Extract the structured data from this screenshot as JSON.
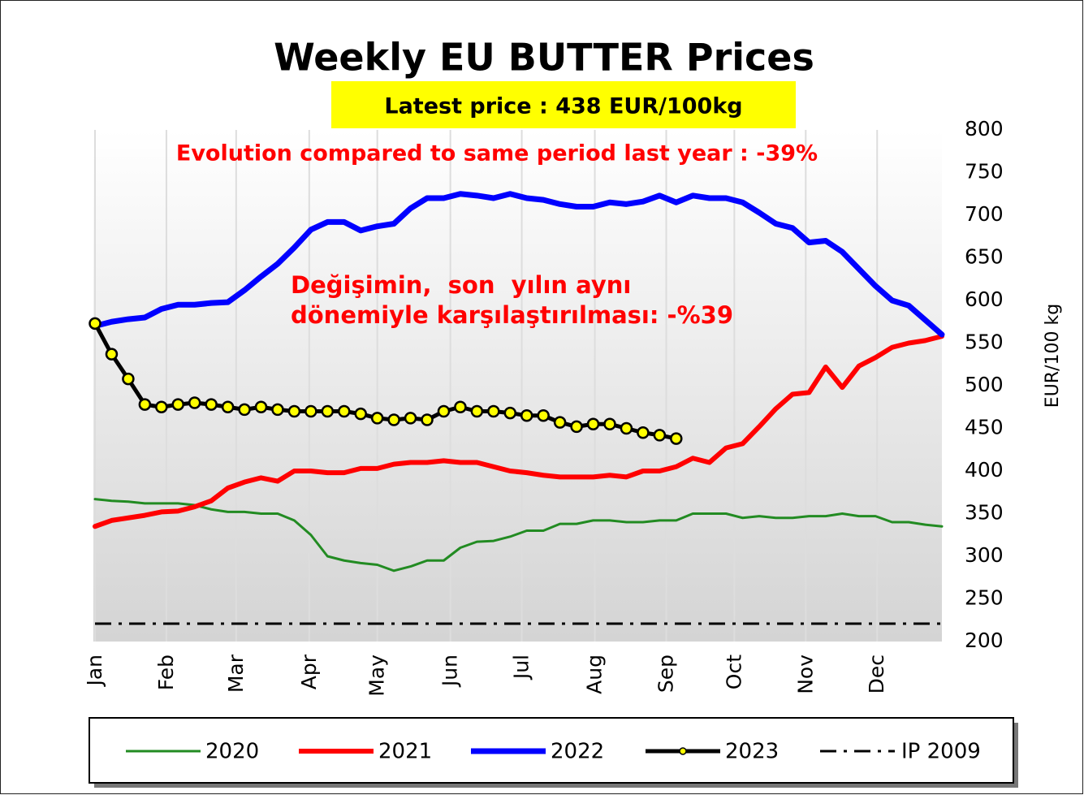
{
  "chart_data": {
    "type": "line",
    "title": "Weekly EU BUTTER Prices",
    "subtitle": "Latest price : 438 EUR/100kg",
    "annotations": [
      "Evolution compared to same period last year : -39%",
      "Değişimin,  son  yılın aynı",
      "dönemiyle karşılaştırılması: -%39"
    ],
    "y_label": "EUR/100 kg",
    "x": [
      1,
      2,
      3,
      4,
      5,
      6,
      7,
      8,
      9,
      10,
      11,
      12,
      13,
      14,
      15,
      16,
      17,
      18,
      19,
      20,
      21,
      22,
      23,
      24,
      25,
      26,
      27,
      28,
      29,
      30,
      31,
      32,
      33,
      34,
      35,
      36,
      37,
      38,
      39,
      40,
      41,
      42,
      43,
      44,
      45,
      46,
      47,
      48,
      49,
      50,
      51,
      52
    ],
    "xlim": [
      1,
      52
    ],
    "xticks": [
      {
        "value": 1,
        "label": "Jan"
      },
      {
        "value": 5.3,
        "label": "Feb"
      },
      {
        "value": 9.5,
        "label": "Mar"
      },
      {
        "value": 13.9,
        "label": "Apr"
      },
      {
        "value": 18,
        "label": "May"
      },
      {
        "value": 22.4,
        "label": "Jun"
      },
      {
        "value": 26.7,
        "label": "Jul"
      },
      {
        "value": 31.1,
        "label": "Aug"
      },
      {
        "value": 35.4,
        "label": "Sep"
      },
      {
        "value": 39.5,
        "label": "Oct"
      },
      {
        "value": 43.8,
        "label": "Nov"
      },
      {
        "value": 48.1,
        "label": "Dec"
      }
    ],
    "ylim": [
      200,
      800
    ],
    "yticks": [
      200,
      250,
      300,
      350,
      400,
      450,
      500,
      550,
      600,
      650,
      700,
      750,
      800
    ],
    "grid": "x",
    "series": [
      {
        "name": "2020",
        "color": "#228b22",
        "values": [
          367,
          365,
          364,
          362,
          362,
          362,
          360,
          355,
          352,
          352,
          350,
          350,
          342,
          325,
          300,
          295,
          292,
          290,
          283,
          288,
          295,
          295,
          310,
          317,
          318,
          323,
          330,
          330,
          338,
          338,
          342,
          342,
          340,
          340,
          342,
          342,
          350,
          350,
          350,
          345,
          347,
          345,
          345,
          347,
          347,
          350,
          347,
          347,
          340,
          340,
          337,
          335
        ]
      },
      {
        "name": "2021",
        "color": "#ff0000",
        "values": [
          335,
          342,
          345,
          348,
          352,
          353,
          358,
          365,
          380,
          387,
          392,
          388,
          400,
          400,
          398,
          398,
          403,
          403,
          408,
          410,
          410,
          412,
          410,
          410,
          405,
          400,
          398,
          395,
          393,
          393,
          393,
          395,
          393,
          400,
          400,
          405,
          415,
          410,
          427,
          432,
          452,
          473,
          490,
          492,
          522,
          498,
          523,
          533,
          545,
          550,
          553,
          558
        ]
      },
      {
        "name": "2022",
        "color": "#0000ff",
        "values": [
          570,
          575,
          578,
          580,
          590,
          595,
          595,
          597,
          598,
          612,
          628,
          643,
          662,
          683,
          692,
          692,
          682,
          687,
          690,
          708,
          720,
          720,
          725,
          723,
          720,
          725,
          720,
          718,
          713,
          710,
          710,
          715,
          713,
          716,
          723,
          715,
          723,
          720,
          720,
          715,
          703,
          690,
          685,
          668,
          670,
          657,
          637,
          617,
          600,
          594,
          577,
          560
        ]
      },
      {
        "name": "2023",
        "color": "#000000",
        "marker": "#ffff00",
        "values": [
          573,
          537,
          508,
          478,
          475,
          478,
          480,
          478,
          475,
          472,
          475,
          472,
          470,
          470,
          470,
          470,
          467,
          462,
          460,
          462,
          460,
          470,
          475,
          470,
          470,
          468,
          465,
          465,
          457,
          452,
          455,
          455,
          450,
          445,
          442,
          438,
          null,
          null,
          null,
          null,
          null,
          null,
          null,
          null,
          null,
          null,
          null,
          null,
          null,
          null,
          null,
          null
        ]
      },
      {
        "name": "IP 2009",
        "color": "#000000",
        "style": "dashdot",
        "values": [
          221,
          221,
          221,
          221,
          221,
          221,
          221,
          221,
          221,
          221,
          221,
          221,
          221,
          221,
          221,
          221,
          221,
          221,
          221,
          221,
          221,
          221,
          221,
          221,
          221,
          221,
          221,
          221,
          221,
          221,
          221,
          221,
          221,
          221,
          221,
          221,
          221,
          221,
          221,
          221,
          221,
          221,
          221,
          221,
          221,
          221,
          221,
          221,
          221,
          221,
          221,
          221
        ]
      }
    ]
  }
}
